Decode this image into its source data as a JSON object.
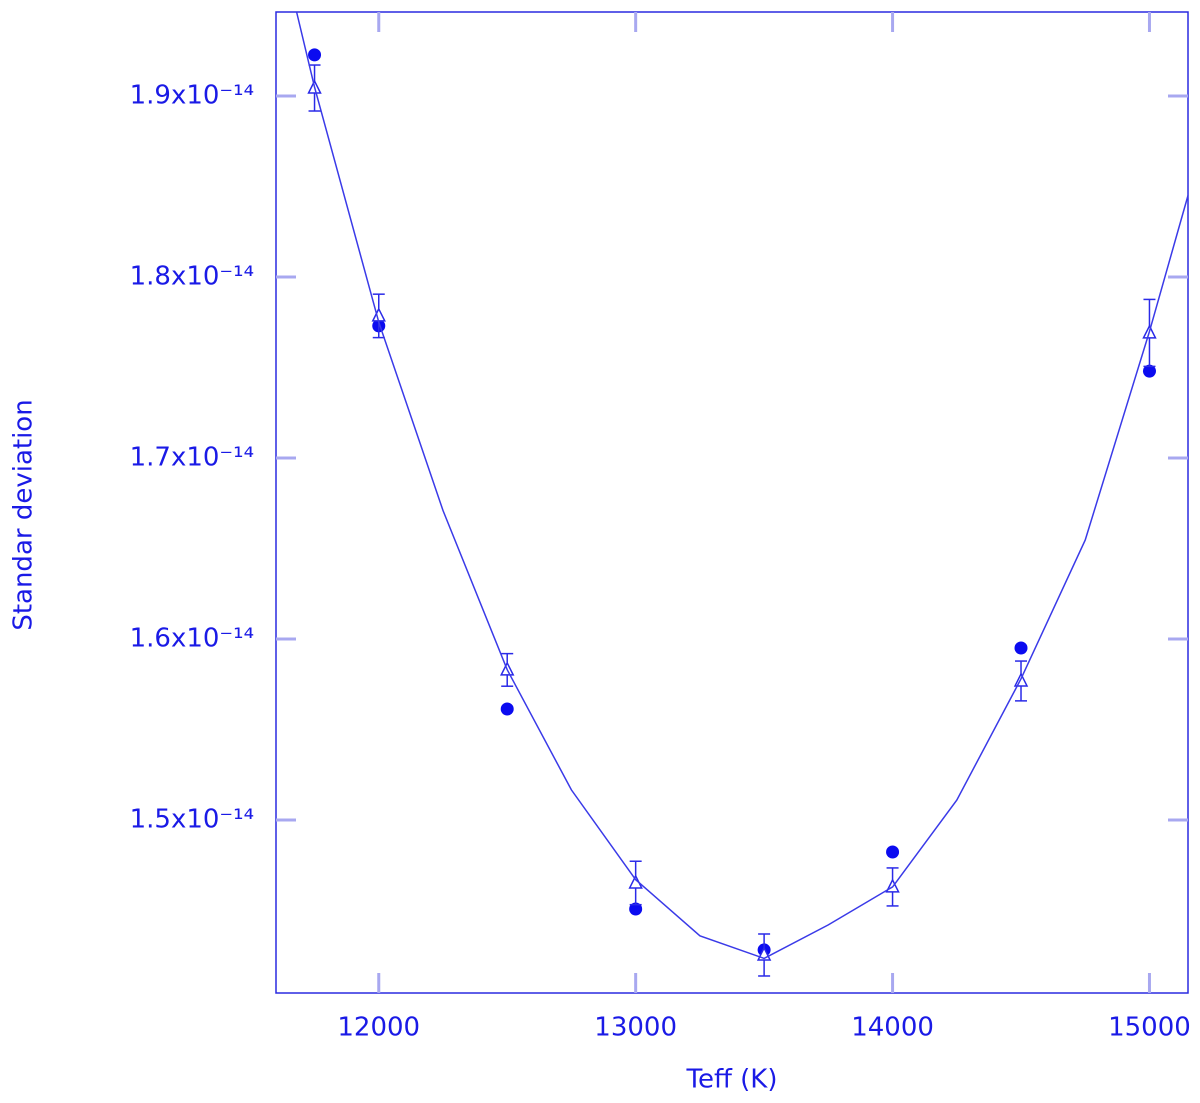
{
  "chart_data": {
    "type": "scatter",
    "x_label": "Teff (K)",
    "y_label": "Standar deviation",
    "xlim": [
      11600,
      15150
    ],
    "ylim": [
      1.4044e-14,
      1.9464e-14
    ],
    "xticks": [
      12000,
      13000,
      14000,
      15000
    ],
    "yticks": [
      {
        "value": 1.5e-14,
        "label": "1.5x10⁻¹⁴"
      },
      {
        "value": 1.6e-14,
        "label": "1.6x10⁻¹⁴"
      },
      {
        "value": 1.7e-14,
        "label": "1.7x10⁻¹⁴"
      },
      {
        "value": 1.8e-14,
        "label": "1.8x10⁻¹⁴"
      },
      {
        "value": 1.9e-14,
        "label": "1.9x10⁻¹⁴"
      }
    ],
    "series": [
      {
        "style": "dots",
        "color": "#0b0bf0",
        "x": [
          11750,
          12000,
          12500,
          13000,
          13500,
          14000,
          14500,
          15000
        ],
        "values": [
          1.9227e-14,
          1.773e-14,
          1.5613e-14,
          1.4508e-14,
          1.4282e-14,
          1.4823e-14,
          1.595e-14,
          1.748e-14
        ]
      },
      {
        "style": "triangles",
        "color": "#2a2ae8",
        "x": [
          11750,
          12000,
          12500,
          13000,
          13500,
          14000,
          14500,
          15000
        ],
        "values": [
          1.9044e-14,
          1.7785e-14,
          1.5829e-14,
          1.4652e-14,
          1.4254e-14,
          1.463e-14,
          1.5768e-14,
          1.7691e-14
        ],
        "errors": [
          1.27e-16,
          1.2e-16,
          9e-17,
          1.2e-16,
          1.16e-16,
          1.05e-16,
          1.1e-16,
          1.85e-16
        ]
      },
      {
        "style": "line",
        "color": "#3a3ae8",
        "x": [
          11680,
          11750,
          12000,
          12250,
          12500,
          12750,
          13000,
          13250,
          13500,
          13750,
          14000,
          14250,
          14500,
          14750,
          15000,
          15150
        ],
        "values": [
          1.9464e-14,
          1.905e-14,
          1.775e-14,
          1.671e-14,
          1.583e-14,
          1.5166e-14,
          1.467e-14,
          1.436e-14,
          1.4235e-14,
          1.442e-14,
          1.463e-14,
          1.511e-14,
          1.578e-14,
          1.6546e-14,
          1.77e-14,
          1.845e-14
        ]
      }
    ]
  }
}
